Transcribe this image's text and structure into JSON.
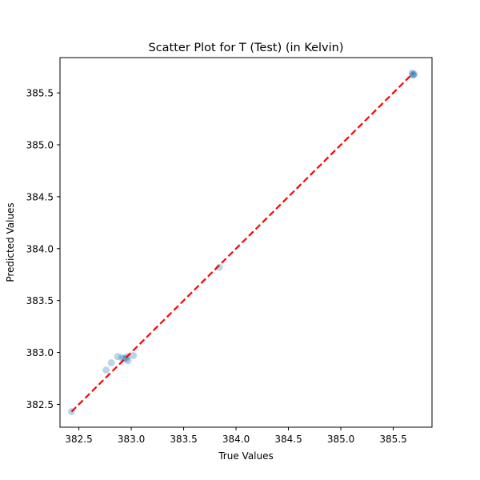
{
  "chart_data": {
    "type": "scatter",
    "title": "Scatter Plot for T (Test) (in Kelvin)",
    "xlabel": "True Values",
    "ylabel": "Predicted Values",
    "xlim": [
      382.32,
      385.87
    ],
    "ylim": [
      382.28,
      385.84
    ],
    "xticks": [
      382.5,
      383.0,
      383.5,
      384.0,
      384.5,
      385.0,
      385.5
    ],
    "xtick_labels": [
      "382.5",
      "383.0",
      "383.5",
      "384.0",
      "384.5",
      "385.0",
      "385.5"
    ],
    "yticks": [
      382.5,
      383.0,
      383.5,
      384.0,
      384.5,
      385.0,
      385.5
    ],
    "ytick_labels": [
      "382.5",
      "383.0",
      "383.5",
      "384.0",
      "384.5",
      "385.0",
      "385.5"
    ],
    "grid": false,
    "point_color": "#1f77b4",
    "point_alpha": 0.3,
    "line_color": "#ff0000",
    "reference_line": {
      "style": "dashed",
      "from": [
        382.43,
        382.43
      ],
      "to": [
        385.69,
        385.69
      ]
    },
    "points": [
      {
        "x": 382.43,
        "y": 382.43
      },
      {
        "x": 382.76,
        "y": 382.83
      },
      {
        "x": 382.81,
        "y": 382.9
      },
      {
        "x": 382.87,
        "y": 382.96
      },
      {
        "x": 382.91,
        "y": 382.95
      },
      {
        "x": 382.93,
        "y": 382.94
      },
      {
        "x": 382.95,
        "y": 382.94
      },
      {
        "x": 382.97,
        "y": 382.92
      },
      {
        "x": 382.96,
        "y": 382.96
      },
      {
        "x": 383.02,
        "y": 382.97
      },
      {
        "x": 383.84,
        "y": 383.82
      },
      {
        "x": 385.69,
        "y": 385.68
      },
      {
        "x": 385.7,
        "y": 385.68
      },
      {
        "x": 385.68,
        "y": 385.69
      },
      {
        "x": 385.69,
        "y": 385.67
      }
    ]
  }
}
